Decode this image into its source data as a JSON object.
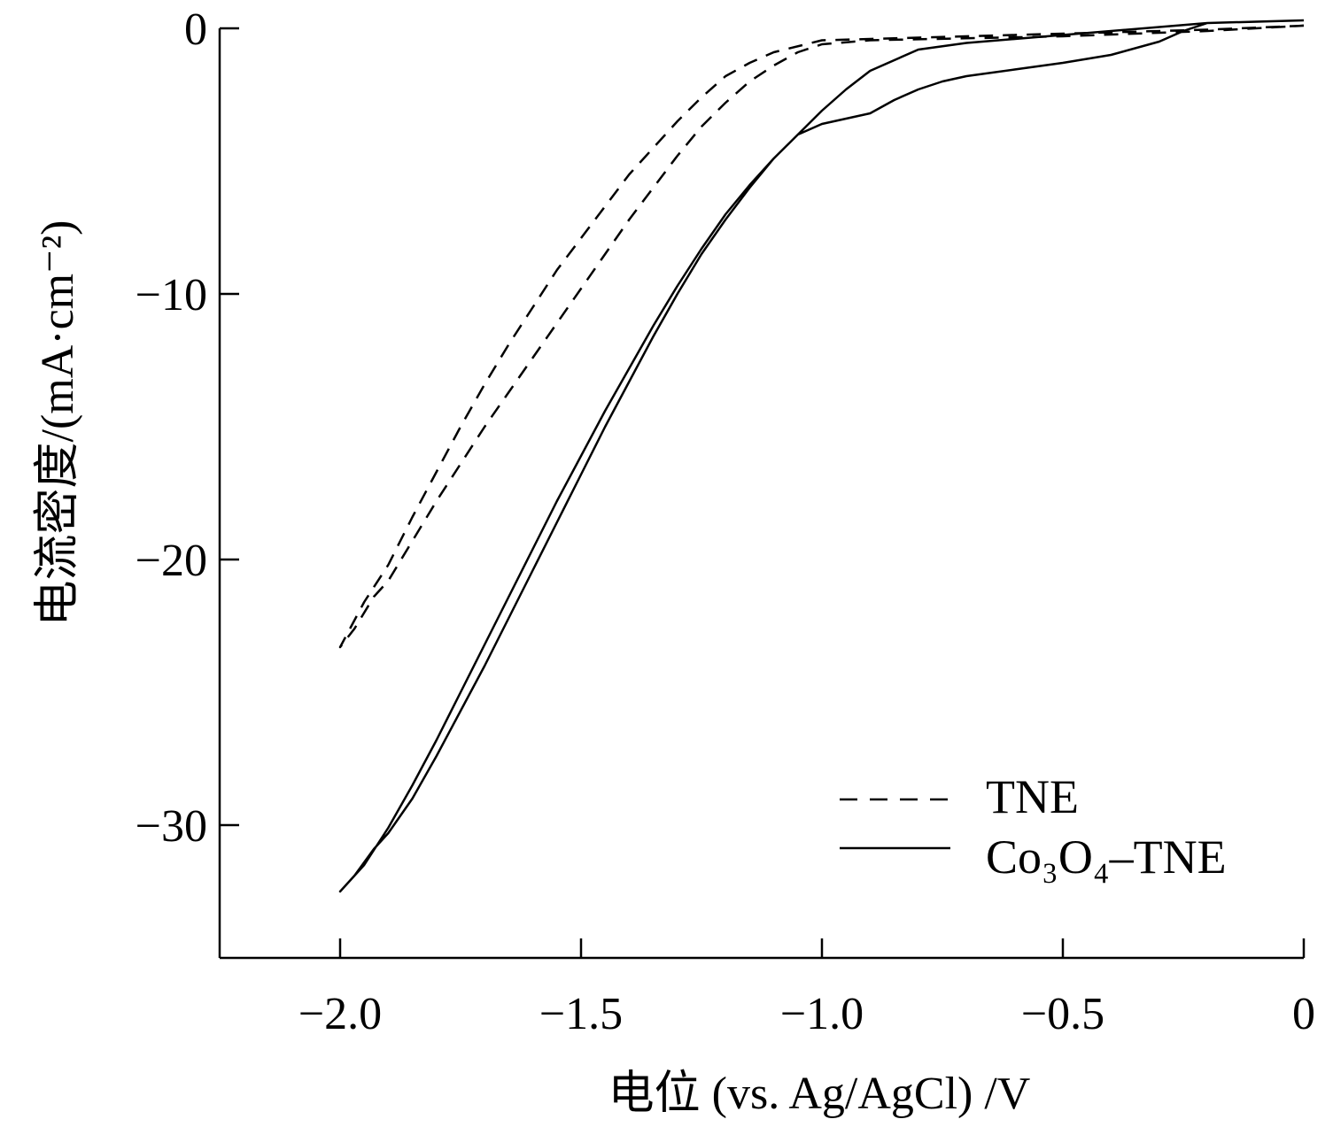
{
  "chart_data": {
    "type": "line",
    "xlabel": "电位 (vs. Ag/AgCl) /V",
    "ylabel": "电流密度/(mA·cm⁻²)",
    "xlim": [
      -2.25,
      0.0
    ],
    "ylim": [
      -35.0,
      0.0
    ],
    "grid": false,
    "legend_position": "bottom-right",
    "x_ticks": [
      {
        "value": -2.0,
        "label": "−2.0"
      },
      {
        "value": -1.5,
        "label": "−1.5"
      },
      {
        "value": -1.0,
        "label": "−1.0"
      },
      {
        "value": -0.5,
        "label": "−0.5"
      },
      {
        "value": 0.0,
        "label": "0"
      }
    ],
    "y_ticks": [
      {
        "value": 0,
        "label": "0"
      },
      {
        "value": -10,
        "label": "−10"
      },
      {
        "value": -20,
        "label": "−20"
      },
      {
        "value": -30,
        "label": "−30"
      }
    ],
    "series": [
      {
        "name": "TNE",
        "style": "dashed",
        "color": "#000000",
        "points": [
          [
            0.0,
            0.1
          ],
          [
            -0.2,
            -0.05
          ],
          [
            -0.5,
            -0.2
          ],
          [
            -0.8,
            -0.35
          ],
          [
            -1.0,
            -0.45
          ],
          [
            -1.1,
            -0.9
          ],
          [
            -1.15,
            -1.3
          ],
          [
            -1.2,
            -1.8
          ],
          [
            -1.25,
            -2.6
          ],
          [
            -1.3,
            -3.5
          ],
          [
            -1.35,
            -4.5
          ],
          [
            -1.4,
            -5.5
          ],
          [
            -1.45,
            -6.7
          ],
          [
            -1.5,
            -7.9
          ],
          [
            -1.55,
            -9.1
          ],
          [
            -1.6,
            -10.5
          ],
          [
            -1.65,
            -11.9
          ],
          [
            -1.7,
            -13.4
          ],
          [
            -1.75,
            -15.0
          ],
          [
            -1.8,
            -16.7
          ],
          [
            -1.85,
            -18.4
          ],
          [
            -1.9,
            -20.2
          ],
          [
            -1.95,
            -21.6
          ],
          [
            -2.0,
            -23.3
          ],
          [
            -1.97,
            -22.6
          ],
          [
            -1.93,
            -21.4
          ],
          [
            -1.9,
            -20.8
          ],
          [
            -1.85,
            -19.3
          ],
          [
            -1.8,
            -17.8
          ],
          [
            -1.75,
            -16.4
          ],
          [
            -1.7,
            -15.0
          ],
          [
            -1.65,
            -13.7
          ],
          [
            -1.6,
            -12.4
          ],
          [
            -1.55,
            -11.1
          ],
          [
            -1.5,
            -9.8
          ],
          [
            -1.45,
            -8.5
          ],
          [
            -1.4,
            -7.2
          ],
          [
            -1.35,
            -6.0
          ],
          [
            -1.3,
            -4.8
          ],
          [
            -1.25,
            -3.7
          ],
          [
            -1.2,
            -2.8
          ],
          [
            -1.15,
            -2.0
          ],
          [
            -1.1,
            -1.4
          ],
          [
            -1.05,
            -0.9
          ],
          [
            -1.0,
            -0.6
          ],
          [
            -0.9,
            -0.45
          ],
          [
            -0.5,
            -0.3
          ],
          [
            -0.2,
            -0.1
          ],
          [
            0.0,
            0.1
          ]
        ]
      },
      {
        "name": "Co₃O₄–TNE",
        "style": "solid",
        "color": "#000000",
        "points": [
          [
            0.0,
            0.3
          ],
          [
            -0.2,
            0.2
          ],
          [
            -0.5,
            -0.25
          ],
          [
            -0.7,
            -0.55
          ],
          [
            -0.8,
            -0.8
          ],
          [
            -0.9,
            -1.6
          ],
          [
            -0.95,
            -2.3
          ],
          [
            -1.0,
            -3.1
          ],
          [
            -1.05,
            -4.0
          ],
          [
            -1.1,
            -4.9
          ],
          [
            -1.15,
            -5.9
          ],
          [
            -1.2,
            -7.0
          ],
          [
            -1.25,
            -8.3
          ],
          [
            -1.3,
            -9.7
          ],
          [
            -1.35,
            -11.2
          ],
          [
            -1.4,
            -12.8
          ],
          [
            -1.45,
            -14.4
          ],
          [
            -1.5,
            -16.1
          ],
          [
            -1.55,
            -17.8
          ],
          [
            -1.6,
            -19.6
          ],
          [
            -1.65,
            -21.4
          ],
          [
            -1.7,
            -23.2
          ],
          [
            -1.75,
            -25.0
          ],
          [
            -1.8,
            -26.8
          ],
          [
            -1.85,
            -28.5
          ],
          [
            -1.9,
            -30.1
          ],
          [
            -1.95,
            -31.5
          ],
          [
            -2.0,
            -32.5
          ],
          [
            -1.97,
            -31.9
          ],
          [
            -1.93,
            -30.9
          ],
          [
            -1.9,
            -30.3
          ],
          [
            -1.85,
            -29.0
          ],
          [
            -1.8,
            -27.4
          ],
          [
            -1.75,
            -25.7
          ],
          [
            -1.7,
            -24.0
          ],
          [
            -1.65,
            -22.2
          ],
          [
            -1.6,
            -20.4
          ],
          [
            -1.55,
            -18.6
          ],
          [
            -1.5,
            -16.8
          ],
          [
            -1.45,
            -15.0
          ],
          [
            -1.4,
            -13.3
          ],
          [
            -1.35,
            -11.6
          ],
          [
            -1.3,
            -10.0
          ],
          [
            -1.25,
            -8.5
          ],
          [
            -1.2,
            -7.2
          ],
          [
            -1.15,
            -6.0
          ],
          [
            -1.1,
            -4.9
          ],
          [
            -1.05,
            -4.0
          ],
          [
            -1.0,
            -3.6
          ],
          [
            -0.95,
            -3.4
          ],
          [
            -0.9,
            -3.2
          ],
          [
            -0.85,
            -2.7
          ],
          [
            -0.8,
            -2.3
          ],
          [
            -0.75,
            -2.0
          ],
          [
            -0.7,
            -1.8
          ],
          [
            -0.6,
            -1.55
          ],
          [
            -0.5,
            -1.3
          ],
          [
            -0.4,
            -1.0
          ],
          [
            -0.3,
            -0.5
          ],
          [
            -0.25,
            -0.1
          ],
          [
            -0.2,
            0.2
          ],
          [
            -0.1,
            0.25
          ],
          [
            0.0,
            0.3
          ]
        ]
      }
    ]
  }
}
